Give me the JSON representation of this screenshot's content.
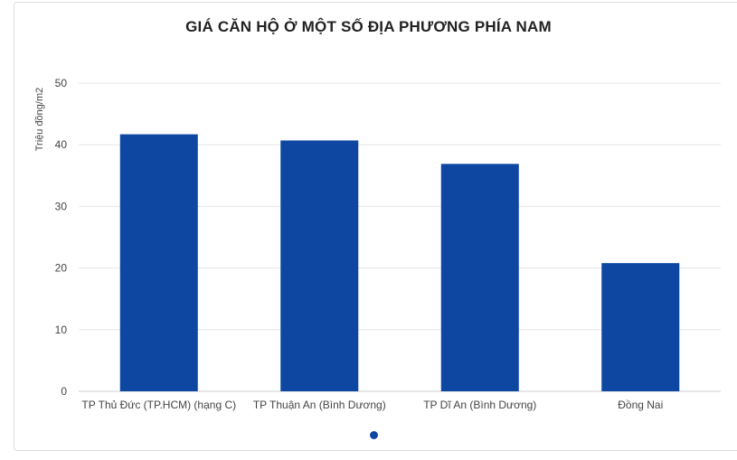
{
  "colors": {
    "bar": "#0d47a1",
    "grid": "#e6e6e6",
    "axis": "#cccccc",
    "pager_dot": "#0d47a1"
  },
  "chart_data": {
    "type": "bar",
    "title": "GIÁ CĂN HỘ Ở MỘT SỐ ĐỊA PHƯƠNG PHÍA NAM",
    "xlabel": "",
    "ylabel": "Triệu đồng/m2",
    "categories": [
      "TP Thủ Đức (TP.HCM) (hạng C)",
      "TP Thuận An (Bình Dương)",
      "TP Dĩ An (Bình Dương)",
      "Đồng Nai"
    ],
    "values": [
      41.7,
      40.7,
      36.9,
      20.8
    ],
    "ylim": [
      0,
      50
    ],
    "yticks": [
      "0",
      "10",
      "20",
      "30",
      "40",
      "50"
    ],
    "grid": true,
    "legend": "none"
  }
}
